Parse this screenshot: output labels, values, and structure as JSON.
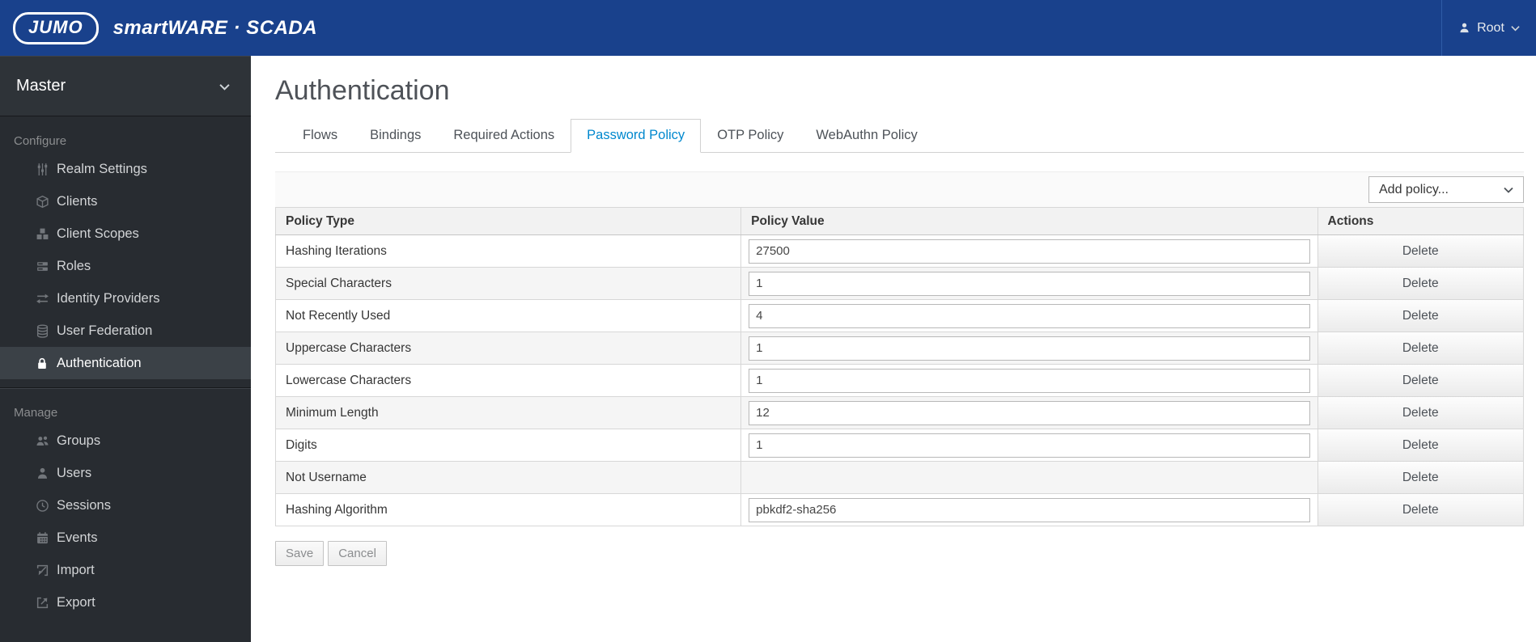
{
  "colors": {
    "header_bg": "#19418C",
    "accent_blue": "#0088CE",
    "sidebar_bg": "#282C31",
    "selected_item_bg": "#3B4147",
    "table_header_bg": "#F2F2F2",
    "stripe_bg": "#F5F5F5"
  },
  "header": {
    "brand": "JUMO",
    "product": "smartWARE · SCADA",
    "user_name": "Root",
    "user_icon": "user-icon",
    "chevron_icon": "chevron-down-icon"
  },
  "sidebar": {
    "realm": "Master",
    "chevron_icon": "chevron-down-icon",
    "sections": [
      {
        "label": "Configure",
        "items": [
          {
            "label": "Realm Settings",
            "icon": "sliders-icon",
            "selected": false
          },
          {
            "label": "Clients",
            "icon": "cube-icon",
            "selected": false
          },
          {
            "label": "Client Scopes",
            "icon": "cubes-icon",
            "selected": false
          },
          {
            "label": "Roles",
            "icon": "server-icon",
            "selected": false
          },
          {
            "label": "Identity Providers",
            "icon": "exchange-icon",
            "selected": false
          },
          {
            "label": "User Federation",
            "icon": "database-icon",
            "selected": false
          },
          {
            "label": "Authentication",
            "icon": "lock-icon",
            "selected": true
          }
        ]
      },
      {
        "label": "Manage",
        "items": [
          {
            "label": "Groups",
            "icon": "group-icon",
            "selected": false
          },
          {
            "label": "Users",
            "icon": "user-icon",
            "selected": false
          },
          {
            "label": "Sessions",
            "icon": "clock-icon",
            "selected": false
          },
          {
            "label": "Events",
            "icon": "calendar-icon",
            "selected": false
          },
          {
            "label": "Import",
            "icon": "import-icon",
            "selected": false
          },
          {
            "label": "Export",
            "icon": "export-icon",
            "selected": false
          }
        ]
      }
    ]
  },
  "main": {
    "title": "Authentication",
    "tabs": [
      {
        "label": "Flows",
        "active": false
      },
      {
        "label": "Bindings",
        "active": false
      },
      {
        "label": "Required Actions",
        "active": false
      },
      {
        "label": "Password Policy",
        "active": true
      },
      {
        "label": "OTP Policy",
        "active": false
      },
      {
        "label": "WebAuthn Policy",
        "active": false
      }
    ],
    "toolbar": {
      "add_policy": "Add policy...",
      "chevron_icon": "chevron-down-icon"
    },
    "table": {
      "columns": [
        "Policy Type",
        "Policy Value",
        "Actions"
      ],
      "rows": [
        {
          "policy_type": "Hashing Iterations",
          "policy_value": "27500",
          "has_input": true,
          "action": "Delete"
        },
        {
          "policy_type": "Special Characters",
          "policy_value": "1",
          "has_input": true,
          "action": "Delete"
        },
        {
          "policy_type": "Not Recently Used",
          "policy_value": "4",
          "has_input": true,
          "action": "Delete"
        },
        {
          "policy_type": "Uppercase Characters",
          "policy_value": "1",
          "has_input": true,
          "action": "Delete"
        },
        {
          "policy_type": "Lowercase Characters",
          "policy_value": "1",
          "has_input": true,
          "action": "Delete"
        },
        {
          "policy_type": "Minimum Length",
          "policy_value": "12",
          "has_input": true,
          "action": "Delete"
        },
        {
          "policy_type": "Digits",
          "policy_value": "1",
          "has_input": true,
          "action": "Delete"
        },
        {
          "policy_type": "Not Username",
          "policy_value": "",
          "has_input": false,
          "action": "Delete"
        },
        {
          "policy_type": "Hashing Algorithm",
          "policy_value": "pbkdf2-sha256",
          "has_input": true,
          "action": "Delete"
        }
      ]
    },
    "buttons": {
      "save": "Save",
      "cancel": "Cancel"
    }
  }
}
